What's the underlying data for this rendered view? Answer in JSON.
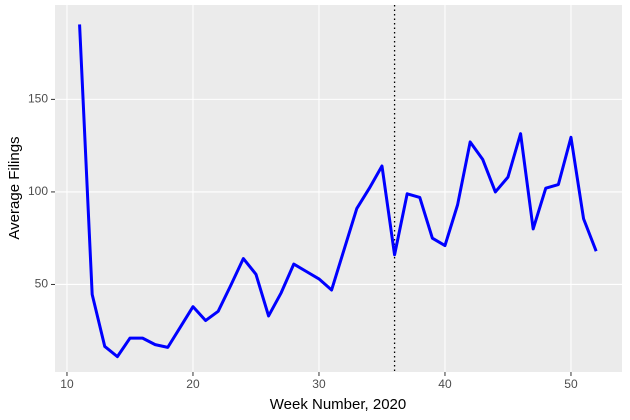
{
  "chart_data": {
    "type": "line",
    "x_label": "Week Number, 2020",
    "y_label": "Average Filings",
    "x": [
      11,
      12,
      13,
      14,
      15,
      16,
      17,
      18,
      19,
      20,
      21,
      22,
      23,
      24,
      25,
      26,
      27,
      28,
      29,
      30,
      31,
      32,
      33,
      34,
      35,
      36,
      37,
      38,
      39,
      40,
      41,
      42,
      43,
      44,
      45,
      46,
      47,
      48,
      49,
      50,
      51,
      52
    ],
    "series": [
      {
        "color": "#0000ff",
        "values": [
          190.5,
          44.6,
          16.5,
          11,
          21,
          21,
          17.5,
          16,
          27,
          38,
          30.5,
          35.5,
          49.5,
          64,
          55.5,
          33,
          45.5,
          61,
          57,
          53,
          47,
          69,
          91,
          102,
          114,
          66,
          99,
          97,
          75,
          71,
          93,
          127,
          117.5,
          100,
          108,
          131.5,
          80,
          102,
          104,
          129.5,
          85.5,
          68
        ]
      }
    ],
    "xlim": [
      9.05,
      54.05
    ],
    "ylim": [
      2.7,
      201
    ],
    "xticks": [
      10,
      20,
      30,
      40,
      50
    ],
    "yticks": [
      50,
      100,
      150
    ],
    "vline": 36,
    "grid": true
  }
}
